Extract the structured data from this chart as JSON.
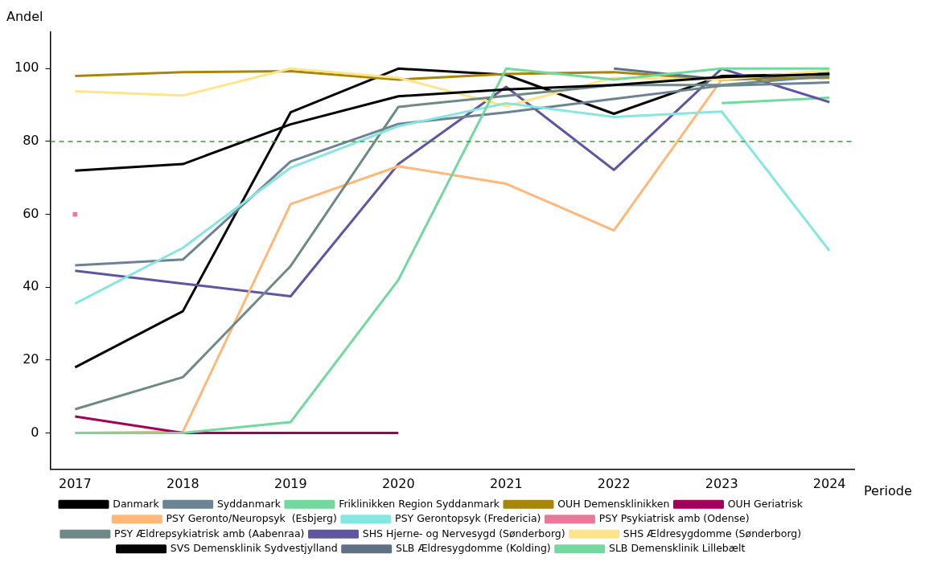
{
  "chart_data": {
    "type": "line",
    "xlabel": "Periode",
    "ylabel": "Andel",
    "x": [
      2017,
      2018,
      2019,
      2020,
      2021,
      2022,
      2023,
      2024
    ],
    "xlim": [
      2016.77,
      2024.23
    ],
    "xticks": [
      2017,
      2018,
      2019,
      2020,
      2021,
      2022,
      2023,
      2024
    ],
    "ylim": [
      -10,
      110
    ],
    "yticks": [
      0,
      20,
      40,
      60,
      80,
      100
    ],
    "grid": false,
    "legend": "bottom",
    "marker": "none",
    "line_style": "solid",
    "ref_lines": [
      {
        "axis": "y",
        "value": 80,
        "color": "#3d9a3d",
        "line_style": "dashed"
      }
    ],
    "series": [
      {
        "name": "Danmark",
        "color": "#000000",
        "values": [
          72,
          73.8,
          84.7,
          92.4,
          94.3,
          95.5,
          97.7,
          98.5
        ]
      },
      {
        "name": "Friklinikken Region Syddanmark",
        "color": "#72d99e",
        "values": [
          0,
          0,
          3,
          42,
          100,
          97,
          100,
          100
        ]
      },
      {
        "name": "OUH Geriatrisk",
        "color": "#a3005a",
        "values": [
          4.5,
          0,
          0,
          0,
          null,
          null,
          null,
          null
        ]
      },
      {
        "name": "PSY Gerontopsyk (Fredericia)",
        "color": "#86e6e0",
        "values": [
          35.5,
          50.8,
          72.8,
          84.2,
          90.5,
          86.7,
          88.2,
          50
        ]
      },
      {
        "name": "PSY Ældrepsykiatrisk amb (Aabenraa)",
        "color": "#6f8a86",
        "values": [
          6.5,
          15.3,
          45.8,
          89.5,
          92.5,
          95.5,
          95.5,
          98
        ]
      },
      {
        "name": "SHS Ældresygdomme (Sønderborg)",
        "color": "#fee48a",
        "values": [
          93.8,
          92.6,
          100,
          97.5,
          89.7,
          97.5,
          97,
          99.5
        ]
      },
      {
        "name": "SLB Ældresygdomme (Kolding)",
        "color": "#5f7285",
        "values": [
          null,
          null,
          null,
          null,
          null,
          100,
          97,
          98.8
        ]
      },
      {
        "name": "Syddanmark",
        "color": "#6d8294",
        "values": [
          46,
          47.6,
          74.5,
          84.8,
          88,
          91.7,
          95.3,
          96.2
        ]
      },
      {
        "name": "OUH Demensklinikken",
        "color": "#a8860a",
        "values": [
          98,
          99,
          99.3,
          97,
          98.5,
          99,
          97,
          97.5
        ]
      },
      {
        "name": "PSY Geronto/Neuropsyk  (Esbjerg)",
        "color": "#ffb877",
        "values": [
          0,
          0.3,
          62.8,
          73.2,
          68.4,
          55.6,
          97,
          98
        ]
      },
      {
        "name": "PSY Psykiatrisk amb (Odense)",
        "color": "#e8799b",
        "marker": "square",
        "values": [
          60,
          null,
          null,
          null,
          null,
          null,
          null,
          null
        ]
      },
      {
        "name": "SHS Hjerne- og Nervesygd (Sønderborg)",
        "color": "#5f55a0",
        "values": [
          44.5,
          41,
          37.5,
          73.8,
          95,
          72.2,
          100,
          90.8
        ]
      },
      {
        "name": "SVS Demensklinik Sydvestjylland",
        "color": "#050505",
        "values": [
          18,
          33.4,
          88,
          100,
          98.3,
          87.6,
          98,
          98.5
        ]
      },
      {
        "name": "SLB Demensklinik Lillebælt",
        "color": "#74d9a0",
        "values": [
          null,
          null,
          null,
          null,
          null,
          null,
          90.5,
          92
        ]
      }
    ]
  }
}
